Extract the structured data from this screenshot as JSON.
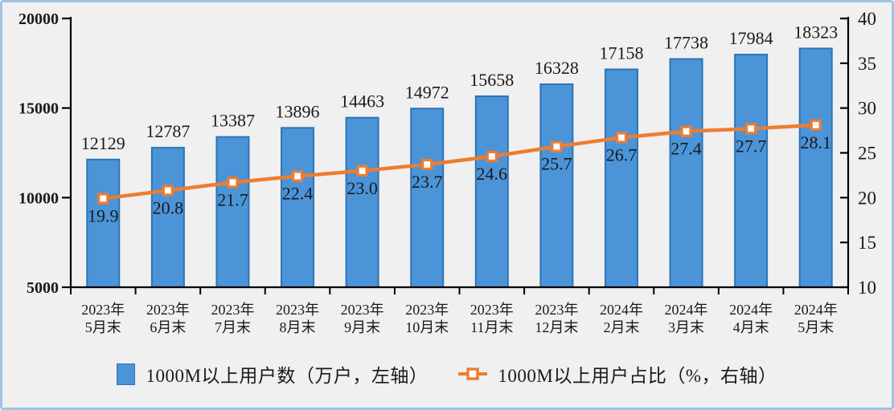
{
  "legend": {
    "bar_label": "1000M以上用户数（万户，左轴）",
    "line_label": "1000M以上用户占比（%，右轴）"
  },
  "chart_data": {
    "type": "bar+line combo",
    "title": "",
    "categories": [
      [
        "2023年",
        "5月末"
      ],
      [
        "2023年",
        "6月末"
      ],
      [
        "2023年",
        "7月末"
      ],
      [
        "2023年",
        "8月末"
      ],
      [
        "2023年",
        "9月末"
      ],
      [
        "2023年",
        "10月末"
      ],
      [
        "2023年",
        "11月末"
      ],
      [
        "2023年",
        "12月末"
      ],
      [
        "2024年",
        "2月末"
      ],
      [
        "2024年",
        "3月末"
      ],
      [
        "2024年",
        "4月末"
      ],
      [
        "2024年",
        "5月末"
      ]
    ],
    "series": [
      {
        "name": "1000M以上用户数（万户，左轴）",
        "type": "bar",
        "axis": "left",
        "values": [
          12129,
          12787,
          13387,
          13896,
          14463,
          14972,
          15658,
          16328,
          17158,
          17738,
          17984,
          18323
        ]
      },
      {
        "name": "1000M以上用户占比（%，右轴）",
        "type": "line",
        "axis": "right",
        "values": [
          19.9,
          20.8,
          21.7,
          22.4,
          23.0,
          23.7,
          24.6,
          25.7,
          26.7,
          27.4,
          27.7,
          28.1
        ],
        "values_display": [
          "19.9",
          "20.8",
          "21.7",
          "22.4",
          "23.0",
          "23.7",
          "24.6",
          "25.7",
          "26.7",
          "27.4",
          "27.7",
          "28.1"
        ]
      }
    ],
    "left_axis": {
      "min": 5000,
      "max": 20000,
      "ticks": [
        20000,
        15000,
        10000,
        5000
      ]
    },
    "right_axis": {
      "min": 10,
      "max": 40,
      "ticks": [
        40,
        35,
        30,
        25,
        20,
        15,
        10
      ]
    },
    "grid": "off",
    "legend_position": "bottom",
    "colors": {
      "bar_fill": "#4B94D8",
      "bar_border": "#2E74B5",
      "line": "#ED7D31",
      "marker_fill": "#FFFFFF",
      "axis": "#000000",
      "text": "#1A1A1A",
      "frame_border": "#9DC3E6",
      "background": "#F0F0F0"
    }
  }
}
